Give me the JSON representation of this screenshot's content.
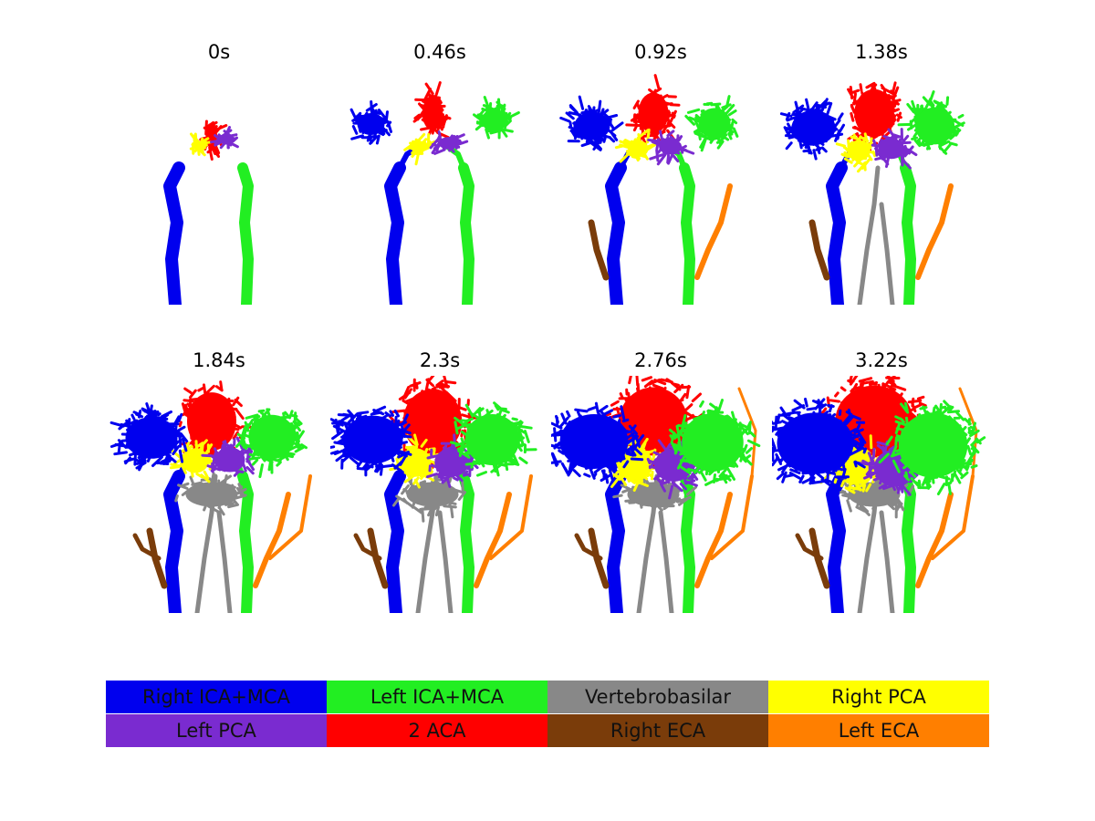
{
  "panels": [
    {
      "label": "0s",
      "stage": 0
    },
    {
      "label": "0.46s",
      "stage": 1
    },
    {
      "label": "0.92s",
      "stage": 2
    },
    {
      "label": "1.38s",
      "stage": 3
    },
    {
      "label": "1.84s",
      "stage": 4
    },
    {
      "label": "2.3s",
      "stage": 5
    },
    {
      "label": "2.76s",
      "stage": 6
    },
    {
      "label": "3.22s",
      "stage": 7
    }
  ],
  "legend": [
    {
      "label": "Right ICA+MCA",
      "color": "#0000ee"
    },
    {
      "label": "Left ICA+MCA",
      "color": "#22ee22"
    },
    {
      "label": "Vertebrobasilar",
      "color": "#888888"
    },
    {
      "label": "Right PCA",
      "color": "#ffff00"
    },
    {
      "label": "Left PCA",
      "color": "#7a2bd0"
    },
    {
      "label": "2 ACA",
      "color": "#ff0000"
    },
    {
      "label": "Right ECA",
      "color": "#7a3c0a"
    },
    {
      "label": "Left ECA",
      "color": "#ff7f00"
    }
  ]
}
